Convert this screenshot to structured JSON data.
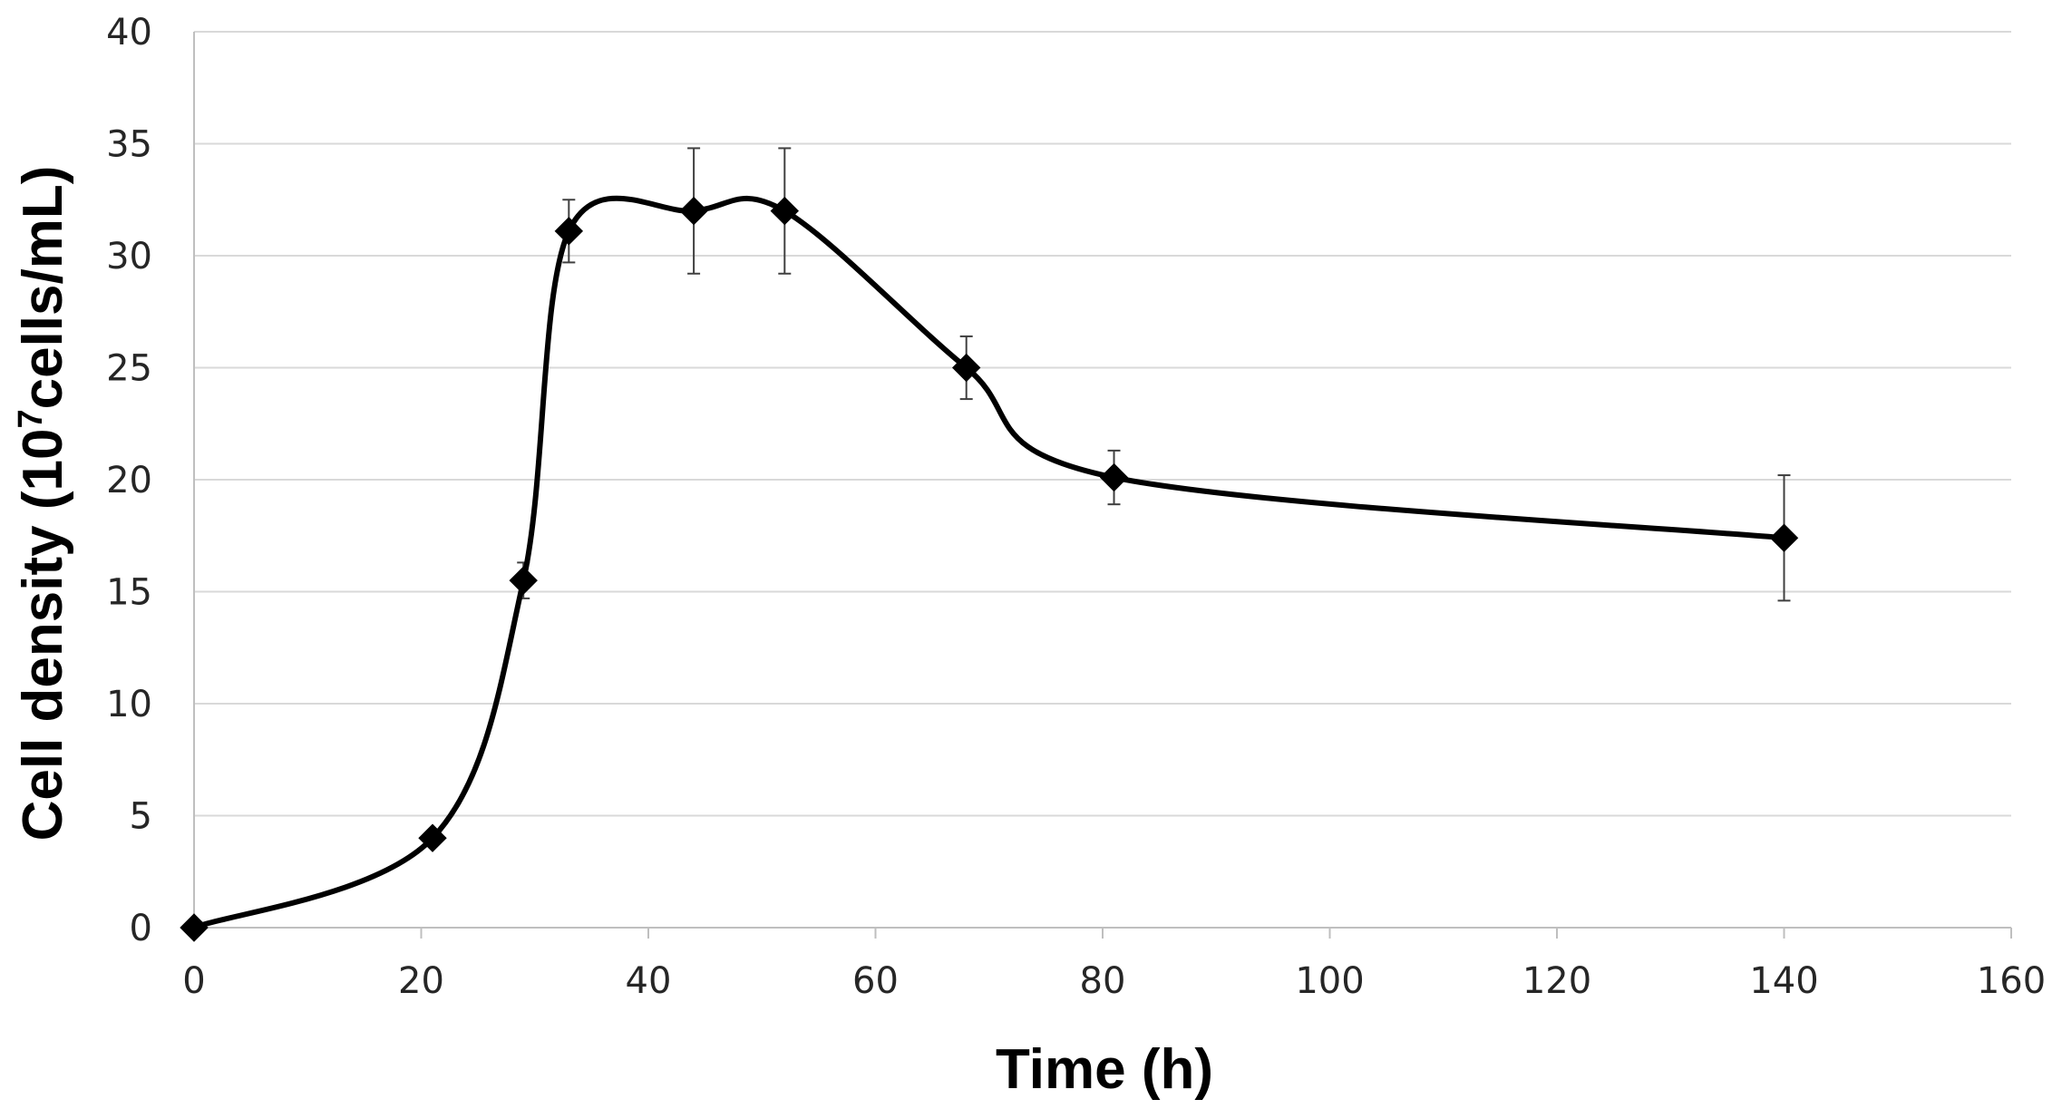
{
  "chart_data": {
    "type": "line",
    "title": "",
    "xlabel": "Time (h)",
    "ylabel": {
      "prefix": "Cell density (10",
      "superscript": "7",
      "suffix": "cells/mL)"
    },
    "xlim": [
      0,
      160
    ],
    "ylim": [
      0,
      40
    ],
    "xticks": [
      0,
      20,
      40,
      60,
      80,
      100,
      120,
      140,
      160
    ],
    "yticks": [
      0,
      5,
      10,
      15,
      20,
      25,
      30,
      35,
      40
    ],
    "grid": "horizontal",
    "smooth": true,
    "series": [
      {
        "name": "Cell density",
        "marker": "diamond",
        "color": "#000000",
        "x": [
          0,
          21,
          29,
          33,
          44,
          52,
          68,
          81,
          140
        ],
        "y": [
          0,
          4,
          15.5,
          31.1,
          32,
          32,
          25,
          20.1,
          17.4
        ],
        "error": [
          0,
          0,
          0.8,
          1.4,
          2.8,
          2.8,
          1.4,
          1.2,
          2.8
        ]
      }
    ]
  }
}
